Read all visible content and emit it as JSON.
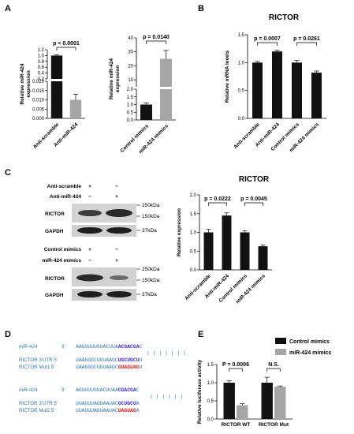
{
  "panels": {
    "A": "A",
    "B": "B",
    "C": "C",
    "D": "D",
    "E": "E"
  },
  "axis_labels": {
    "rel_mir424": "Relative miR-424\nexpression",
    "rel_mrna": "Relative mRNA levels",
    "rel_expr": "Relative expression",
    "rel_luc": "Relative luciferase activity"
  },
  "titles": {
    "B": "RICTOR",
    "C": "RICTOR"
  },
  "wb": {
    "top_rows": [
      {
        "label": "Anti-scramble",
        "marks": [
          "+",
          "−"
        ]
      },
      {
        "label": "Anti-miR-424",
        "marks": [
          "−",
          "+"
        ]
      }
    ],
    "bottom_rows": [
      {
        "label": "Control mimics",
        "marks": [
          "+",
          "−"
        ]
      },
      {
        "label": "miR-424 mimics",
        "marks": [
          "−",
          "+"
        ]
      }
    ],
    "bands": [
      "RICTOR",
      "GAPDH",
      "RICTOR",
      "GAPDH"
    ],
    "sizes_top": [
      "250kDa",
      "150kDa",
      "37kDa"
    ],
    "sizes_bottom": [
      "250kDa",
      "150kDa",
      "37kDa"
    ]
  },
  "sequences": {
    "group1": {
      "mir_label": "miR-424",
      "mir_dir": "3'",
      "mir_plain": "AAGUUUUGUACUUA",
      "mir_hl": "ACGACGA",
      "mir_tail": "C",
      "pairs": "| | | | | | |",
      "wt_label": "RICTOR 3'UTR 5'",
      "wt_plain": "UAAGGGCUGUAAGC",
      "wt_hl": "UGCUGCU",
      "wt_tail": "U",
      "mut_label": "RICTOR Mut1   5'",
      "mut_plain": "UAAGGGCUGUAAGC",
      "mut_hl": "GUAGUAG",
      "mut_tail": "U"
    },
    "group2": {
      "mir_label": "miR-424",
      "mir_dir": "3'",
      "mir_plain": "AGUUUUGUACUUAA",
      "mir_hl": "CGACGA",
      "mir_tail": "C",
      "pairs": "| | | | | |",
      "wt_label": "RICTOR 3'UTR 5'",
      "wt_plain": "UUAUUUAGUAAUAC",
      "wt_hl": "GCUGCU",
      "wt_tail": "A",
      "mut_label": "RICTOR Mut2   5'",
      "mut_plain": "UUAUUUAGUAAUAC",
      "mut_hl": "UAGUAG",
      "mut_tail": "A"
    }
  },
  "legend_E": [
    {
      "name": "Control mimics",
      "color": "#111111"
    },
    {
      "name": "miR-424 mimics",
      "color": "#a6a6a6"
    }
  ],
  "colors": {
    "black_bar": "#111111",
    "grey_bar": "#a6a6a6",
    "seq_blue": "#2e75b6",
    "seq_purple": "#3a2bd6",
    "seq_red": "#e02020"
  },
  "chart_data": [
    {
      "id": "A1",
      "type": "bar",
      "broken_axis": true,
      "categories": [
        "Anti-scramble",
        "Anti-miR-424"
      ],
      "values": [
        1.0,
        0.01
      ],
      "errors": [
        0.02,
        0.003
      ],
      "colors": [
        "#111111",
        "#a6a6a6"
      ],
      "ylabel": "Relative miR-424\nexpression",
      "yticks_upper": [
        "1.2",
        "1.0",
        "0.8",
        "0.6",
        "0.4",
        "0.2"
      ],
      "yticks_lower": [
        "0.020",
        "0.015",
        "0.010",
        "0.005",
        "0.000"
      ],
      "annotation": "p < 0.0001"
    },
    {
      "id": "A2",
      "type": "bar",
      "broken_axis": true,
      "categories": [
        "Control mimics",
        "miR-424 mimics"
      ],
      "values": [
        1.0,
        25.0
      ],
      "errors": [
        0.1,
        6.0
      ],
      "colors": [
        "#111111",
        "#a6a6a6"
      ],
      "ylabel": "Relative miR-424\nexpression",
      "yticks_upper": [
        "40",
        "30",
        "20",
        "10"
      ],
      "yticks_lower": [
        "2.0",
        "1.5",
        "1.0",
        "0.5",
        "0.0"
      ],
      "annotation": "p = 0.0140"
    },
    {
      "id": "B",
      "type": "bar",
      "title": "RICTOR",
      "categories": [
        "Anti-scramble",
        "Anti-miR-424",
        "Control mimics",
        "miR-424 mimics"
      ],
      "values": [
        1.0,
        1.2,
        1.0,
        0.82
      ],
      "errors": [
        0.02,
        0.02,
        0.04,
        0.03
      ],
      "colors": [
        "#111111",
        "#111111",
        "#111111",
        "#111111"
      ],
      "ylabel": "Relative mRNA levels",
      "ylim": [
        0,
        1.5
      ],
      "yticks": [
        "0.0",
        "0.5",
        "1.0",
        "1.5"
      ],
      "annotations": [
        {
          "label": "p = 0.0007",
          "from": 0,
          "to": 1
        },
        {
          "label": "p = 0.0261",
          "from": 2,
          "to": 3
        }
      ]
    },
    {
      "id": "C",
      "type": "bar",
      "title": "RICTOR",
      "categories": [
        "Anti-scramble",
        "Anti-miR-424",
        "Control mimics",
        "miR-424 mimics"
      ],
      "values": [
        1.0,
        1.45,
        1.0,
        0.63
      ],
      "errors": [
        0.08,
        0.07,
        0.04,
        0.03
      ],
      "colors": [
        "#111111",
        "#111111",
        "#111111",
        "#111111"
      ],
      "ylabel": "Relative expression",
      "ylim": [
        0,
        2.0
      ],
      "yticks": [
        "0.0",
        "0.5",
        "1.0",
        "1.5",
        "2.0"
      ],
      "annotations": [
        {
          "label": "p = 0.0222",
          "from": 0,
          "to": 1
        },
        {
          "label": "p = 0.0045",
          "from": 2,
          "to": 3
        }
      ]
    },
    {
      "id": "E",
      "type": "bar",
      "grouped": true,
      "categories": [
        "RICTOR WT",
        "RICTOR Mut"
      ],
      "series": [
        {
          "name": "Control mimics",
          "values": [
            1.0,
            1.0
          ],
          "errors": [
            0.05,
            0.15
          ]
        },
        {
          "name": "miR-424 mimics",
          "values": [
            0.38,
            0.89
          ],
          "errors": [
            0.04,
            0.02
          ]
        }
      ],
      "ylabel": "Relative luciferase activity",
      "ylim": [
        0,
        1.5
      ],
      "yticks": [
        "0.0",
        "0.5",
        "1.0",
        "1.5"
      ],
      "annotations": [
        {
          "label": "P = 0.0006",
          "group": 0
        },
        {
          "label": "N.S.",
          "group": 1
        }
      ]
    }
  ]
}
